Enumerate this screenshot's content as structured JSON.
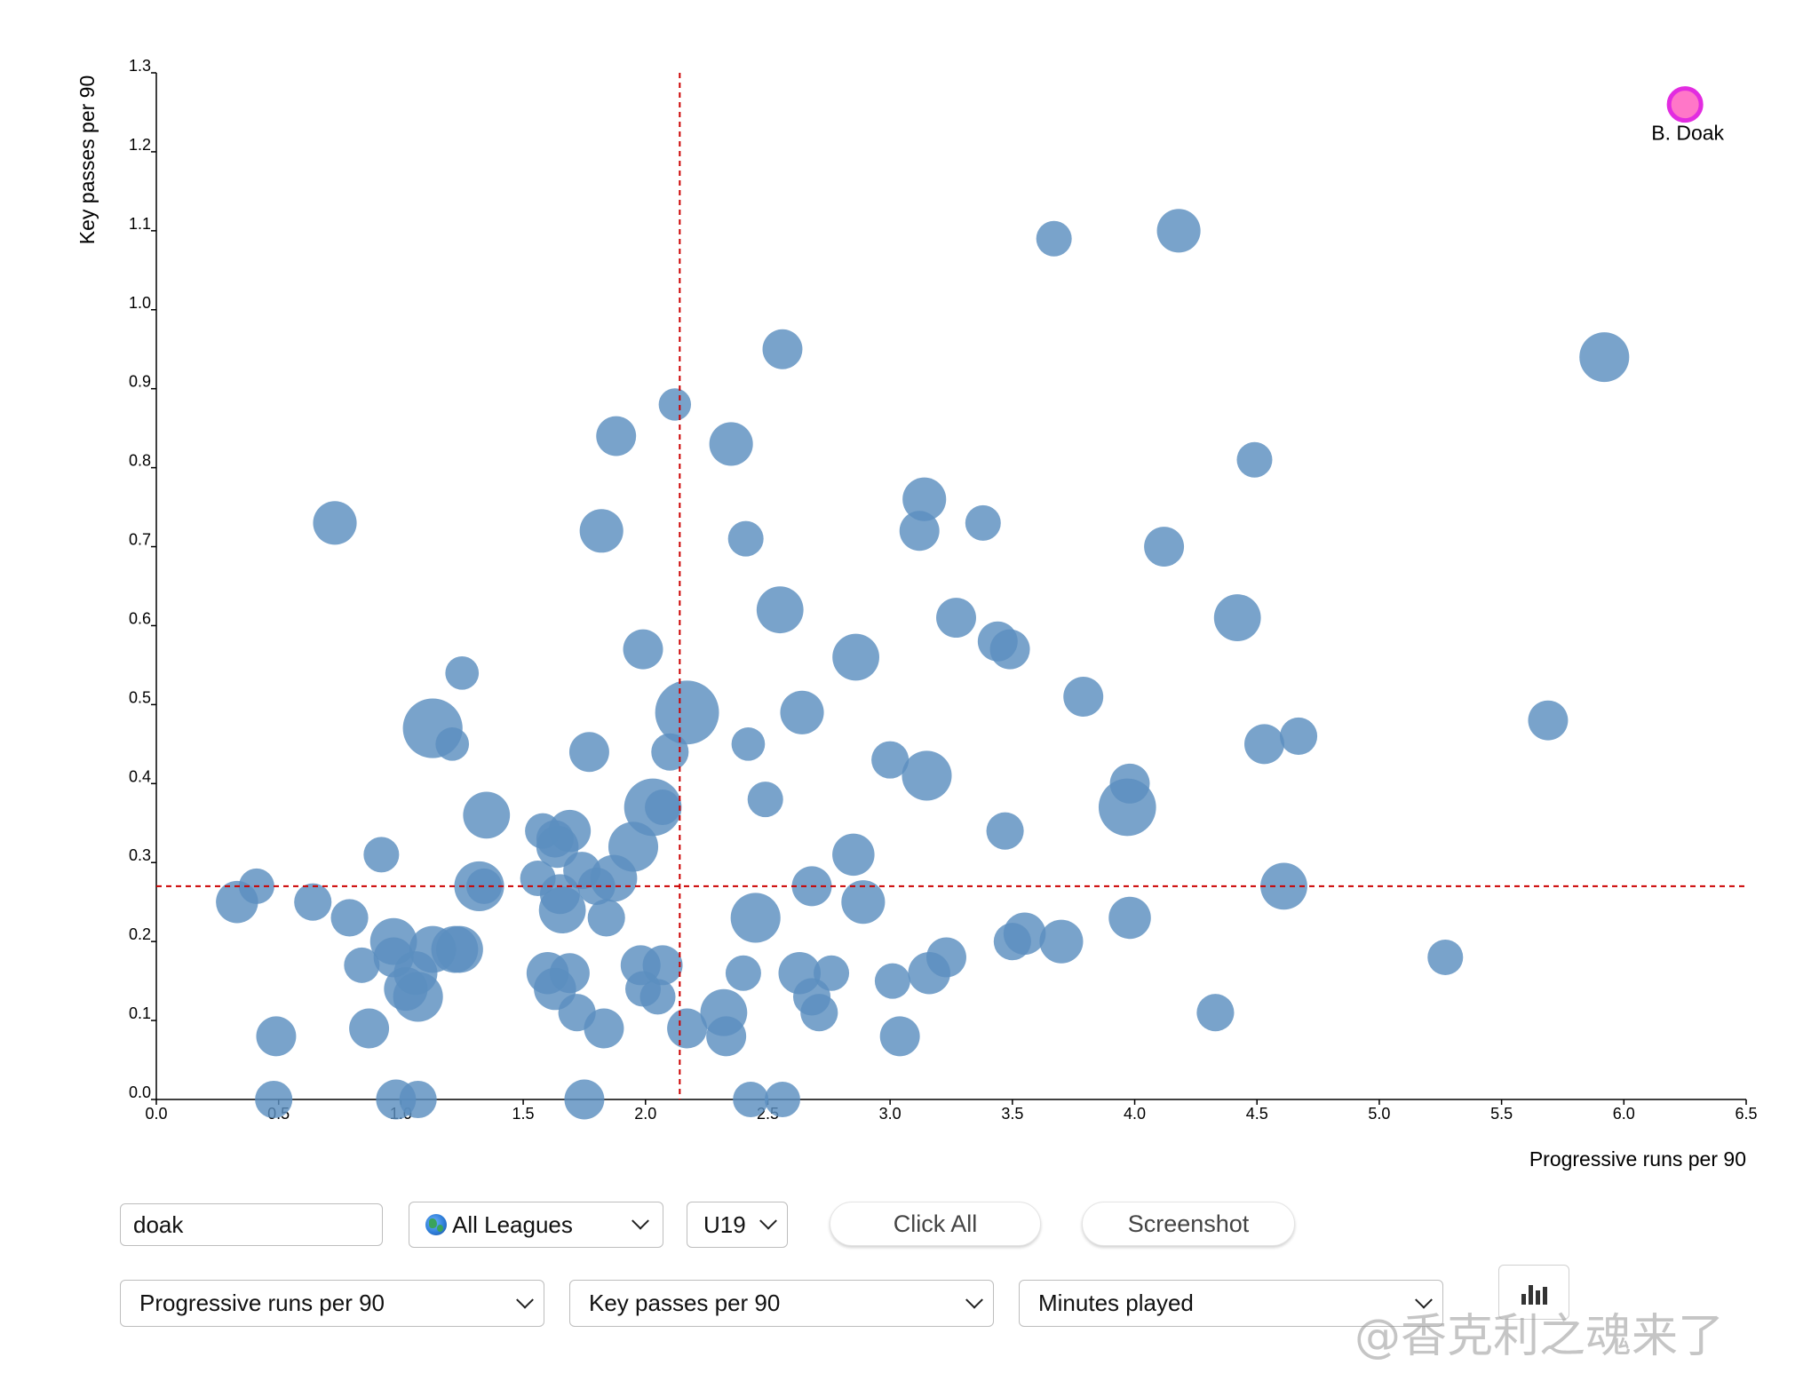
{
  "chart_data": {
    "type": "scatter",
    "title": "",
    "xlabel": "Progressive runs per 90",
    "ylabel": "Key passes per 90",
    "xlim": [
      0,
      6.5
    ],
    "ylim": [
      0,
      1.3
    ],
    "xticks": [
      "0.0",
      "0.5",
      "1.0",
      "1.5",
      "2.0",
      "2.5",
      "3.0",
      "3.5",
      "4.0",
      "4.5",
      "5.0",
      "5.5",
      "6.0",
      "6.5"
    ],
    "yticks": [
      "0.0",
      "0.1",
      "0.2",
      "0.3",
      "0.4",
      "0.5",
      "0.6",
      "0.7",
      "0.8",
      "0.9",
      "1.0",
      "1.1",
      "1.2",
      "1.3"
    ],
    "size_metric": "Minutes played",
    "reference_lines": {
      "x": 2.14,
      "y": 0.27
    },
    "point_color": "#5b8fc0",
    "highlight_color": "#ff77c8",
    "highlight_stroke": "#e22ce0",
    "reference_color": "#cc0000",
    "highlight": {
      "label": "B. Doak",
      "x": 6.25,
      "y": 1.26
    },
    "points": [
      {
        "x": 1.82,
        "y": 0.72,
        "s": 2
      },
      {
        "x": 4.18,
        "y": 1.1,
        "s": 2
      },
      {
        "x": 3.67,
        "y": 1.09,
        "s": 1
      },
      {
        "x": 2.56,
        "y": 0.95,
        "s": 1.5
      },
      {
        "x": 5.92,
        "y": 0.94,
        "s": 3
      },
      {
        "x": 2.12,
        "y": 0.88,
        "s": 0.7
      },
      {
        "x": 1.88,
        "y": 0.84,
        "s": 1.5
      },
      {
        "x": 2.35,
        "y": 0.83,
        "s": 2
      },
      {
        "x": 4.49,
        "y": 0.81,
        "s": 1
      },
      {
        "x": 3.14,
        "y": 0.76,
        "s": 2
      },
      {
        "x": 0.73,
        "y": 0.73,
        "s": 2
      },
      {
        "x": 3.38,
        "y": 0.73,
        "s": 1
      },
      {
        "x": 3.12,
        "y": 0.72,
        "s": 1.5
      },
      {
        "x": 2.41,
        "y": 0.71,
        "s": 1
      },
      {
        "x": 4.12,
        "y": 0.7,
        "s": 1.5
      },
      {
        "x": 2.55,
        "y": 0.62,
        "s": 2.5
      },
      {
        "x": 3.27,
        "y": 0.61,
        "s": 1.5
      },
      {
        "x": 4.42,
        "y": 0.61,
        "s": 2.5
      },
      {
        "x": 1.99,
        "y": 0.57,
        "s": 1.5
      },
      {
        "x": 3.44,
        "y": 0.58,
        "s": 1.5
      },
      {
        "x": 3.49,
        "y": 0.57,
        "s": 1.5
      },
      {
        "x": 2.86,
        "y": 0.56,
        "s": 2.5
      },
      {
        "x": 1.25,
        "y": 0.54,
        "s": 0.8
      },
      {
        "x": 3.79,
        "y": 0.51,
        "s": 1.5
      },
      {
        "x": 2.17,
        "y": 0.49,
        "s": 6
      },
      {
        "x": 2.64,
        "y": 0.49,
        "s": 2
      },
      {
        "x": 5.69,
        "y": 0.48,
        "s": 1.5
      },
      {
        "x": 1.13,
        "y": 0.47,
        "s": 5
      },
      {
        "x": 1.21,
        "y": 0.45,
        "s": 0.8
      },
      {
        "x": 2.42,
        "y": 0.45,
        "s": 0.8
      },
      {
        "x": 4.53,
        "y": 0.45,
        "s": 1.5
      },
      {
        "x": 4.67,
        "y": 0.46,
        "s": 1.2
      },
      {
        "x": 1.77,
        "y": 0.44,
        "s": 1.5
      },
      {
        "x": 2.1,
        "y": 0.44,
        "s": 1.2
      },
      {
        "x": 3.0,
        "y": 0.43,
        "s": 1.2
      },
      {
        "x": 3.15,
        "y": 0.41,
        "s": 3
      },
      {
        "x": 3.98,
        "y": 0.4,
        "s": 1.5
      },
      {
        "x": 2.49,
        "y": 0.38,
        "s": 1
      },
      {
        "x": 2.03,
        "y": 0.37,
        "s": 4.5
      },
      {
        "x": 2.07,
        "y": 0.37,
        "s": 1
      },
      {
        "x": 3.97,
        "y": 0.37,
        "s": 4.5
      },
      {
        "x": 1.35,
        "y": 0.36,
        "s": 2.5
      },
      {
        "x": 1.58,
        "y": 0.34,
        "s": 1
      },
      {
        "x": 1.69,
        "y": 0.34,
        "s": 1.8
      },
      {
        "x": 1.63,
        "y": 0.33,
        "s": 1.2
      },
      {
        "x": 1.64,
        "y": 0.32,
        "s": 1.8
      },
      {
        "x": 3.47,
        "y": 0.34,
        "s": 1.2
      },
      {
        "x": 1.95,
        "y": 0.32,
        "s": 3
      },
      {
        "x": 0.92,
        "y": 0.31,
        "s": 1
      },
      {
        "x": 2.85,
        "y": 0.31,
        "s": 1.8
      },
      {
        "x": 1.74,
        "y": 0.29,
        "s": 1.2
      },
      {
        "x": 1.56,
        "y": 0.28,
        "s": 1
      },
      {
        "x": 1.87,
        "y": 0.28,
        "s": 2.5
      },
      {
        "x": 1.8,
        "y": 0.27,
        "s": 1.2
      },
      {
        "x": 0.41,
        "y": 0.27,
        "s": 1
      },
      {
        "x": 1.32,
        "y": 0.27,
        "s": 3
      },
      {
        "x": 1.34,
        "y": 0.27,
        "s": 1
      },
      {
        "x": 2.68,
        "y": 0.27,
        "s": 1.5
      },
      {
        "x": 4.61,
        "y": 0.27,
        "s": 2.5
      },
      {
        "x": 1.65,
        "y": 0.26,
        "s": 1.5
      },
      {
        "x": 0.33,
        "y": 0.25,
        "s": 1.8
      },
      {
        "x": 0.64,
        "y": 0.25,
        "s": 1.2
      },
      {
        "x": 2.89,
        "y": 0.25,
        "s": 2
      },
      {
        "x": 1.66,
        "y": 0.24,
        "s": 2.5
      },
      {
        "x": 0.79,
        "y": 0.23,
        "s": 1.2
      },
      {
        "x": 1.84,
        "y": 0.23,
        "s": 1.2
      },
      {
        "x": 2.45,
        "y": 0.23,
        "s": 3
      },
      {
        "x": 3.98,
        "y": 0.23,
        "s": 1.8
      },
      {
        "x": 0.97,
        "y": 0.2,
        "s": 2.5
      },
      {
        "x": 1.13,
        "y": 0.19,
        "s": 2.5
      },
      {
        "x": 1.22,
        "y": 0.19,
        "s": 2.5
      },
      {
        "x": 1.24,
        "y": 0.19,
        "s": 2.5
      },
      {
        "x": 3.55,
        "y": 0.21,
        "s": 1.8
      },
      {
        "x": 3.5,
        "y": 0.2,
        "s": 1.2
      },
      {
        "x": 3.7,
        "y": 0.2,
        "s": 2
      },
      {
        "x": 0.97,
        "y": 0.18,
        "s": 1.5
      },
      {
        "x": 0.84,
        "y": 0.17,
        "s": 1
      },
      {
        "x": 3.23,
        "y": 0.18,
        "s": 1.5
      },
      {
        "x": 5.27,
        "y": 0.18,
        "s": 1
      },
      {
        "x": 1.06,
        "y": 0.16,
        "s": 2
      },
      {
        "x": 1.6,
        "y": 0.16,
        "s": 1.8
      },
      {
        "x": 1.69,
        "y": 0.16,
        "s": 1.5
      },
      {
        "x": 1.98,
        "y": 0.17,
        "s": 1.5
      },
      {
        "x": 2.07,
        "y": 0.17,
        "s": 1.5
      },
      {
        "x": 2.4,
        "y": 0.16,
        "s": 1
      },
      {
        "x": 2.63,
        "y": 0.16,
        "s": 1.8
      },
      {
        "x": 2.76,
        "y": 0.16,
        "s": 1
      },
      {
        "x": 3.16,
        "y": 0.16,
        "s": 1.8
      },
      {
        "x": 1.02,
        "y": 0.14,
        "s": 2
      },
      {
        "x": 1.63,
        "y": 0.14,
        "s": 1.8
      },
      {
        "x": 1.99,
        "y": 0.14,
        "s": 1
      },
      {
        "x": 3.01,
        "y": 0.15,
        "s": 1
      },
      {
        "x": 1.07,
        "y": 0.13,
        "s": 3
      },
      {
        "x": 2.05,
        "y": 0.13,
        "s": 1
      },
      {
        "x": 2.68,
        "y": 0.13,
        "s": 1.2
      },
      {
        "x": 1.72,
        "y": 0.11,
        "s": 1.2
      },
      {
        "x": 2.32,
        "y": 0.11,
        "s": 2.5
      },
      {
        "x": 2.71,
        "y": 0.11,
        "s": 1.2
      },
      {
        "x": 4.33,
        "y": 0.11,
        "s": 1.2
      },
      {
        "x": 0.87,
        "y": 0.09,
        "s": 1.5
      },
      {
        "x": 1.83,
        "y": 0.09,
        "s": 1.5
      },
      {
        "x": 2.17,
        "y": 0.09,
        "s": 1.5
      },
      {
        "x": 0.49,
        "y": 0.08,
        "s": 1.5
      },
      {
        "x": 2.33,
        "y": 0.08,
        "s": 1.5
      },
      {
        "x": 3.04,
        "y": 0.08,
        "s": 1.5
      },
      {
        "x": 0.48,
        "y": 0.0,
        "s": 1.2
      },
      {
        "x": 0.98,
        "y": 0.0,
        "s": 1.5
      },
      {
        "x": 1.07,
        "y": 0.0,
        "s": 1.2
      },
      {
        "x": 1.75,
        "y": 0.0,
        "s": 1.5
      },
      {
        "x": 2.43,
        "y": 0.0,
        "s": 1
      },
      {
        "x": 2.56,
        "y": 0.0,
        "s": 1
      }
    ]
  },
  "controls": {
    "search_value": "doak",
    "league_select": "All Leagues",
    "league_icon": "globe-icon",
    "age_select": "U19",
    "click_all_label": "Click All",
    "screenshot_label": "Screenshot",
    "x_metric_select": "Progressive runs per 90",
    "y_metric_select": "Key passes per 90",
    "size_metric_select": "Minutes played",
    "chart_type_icon": "bar-chart-icon"
  },
  "watermark": "@香克利之魂来了"
}
